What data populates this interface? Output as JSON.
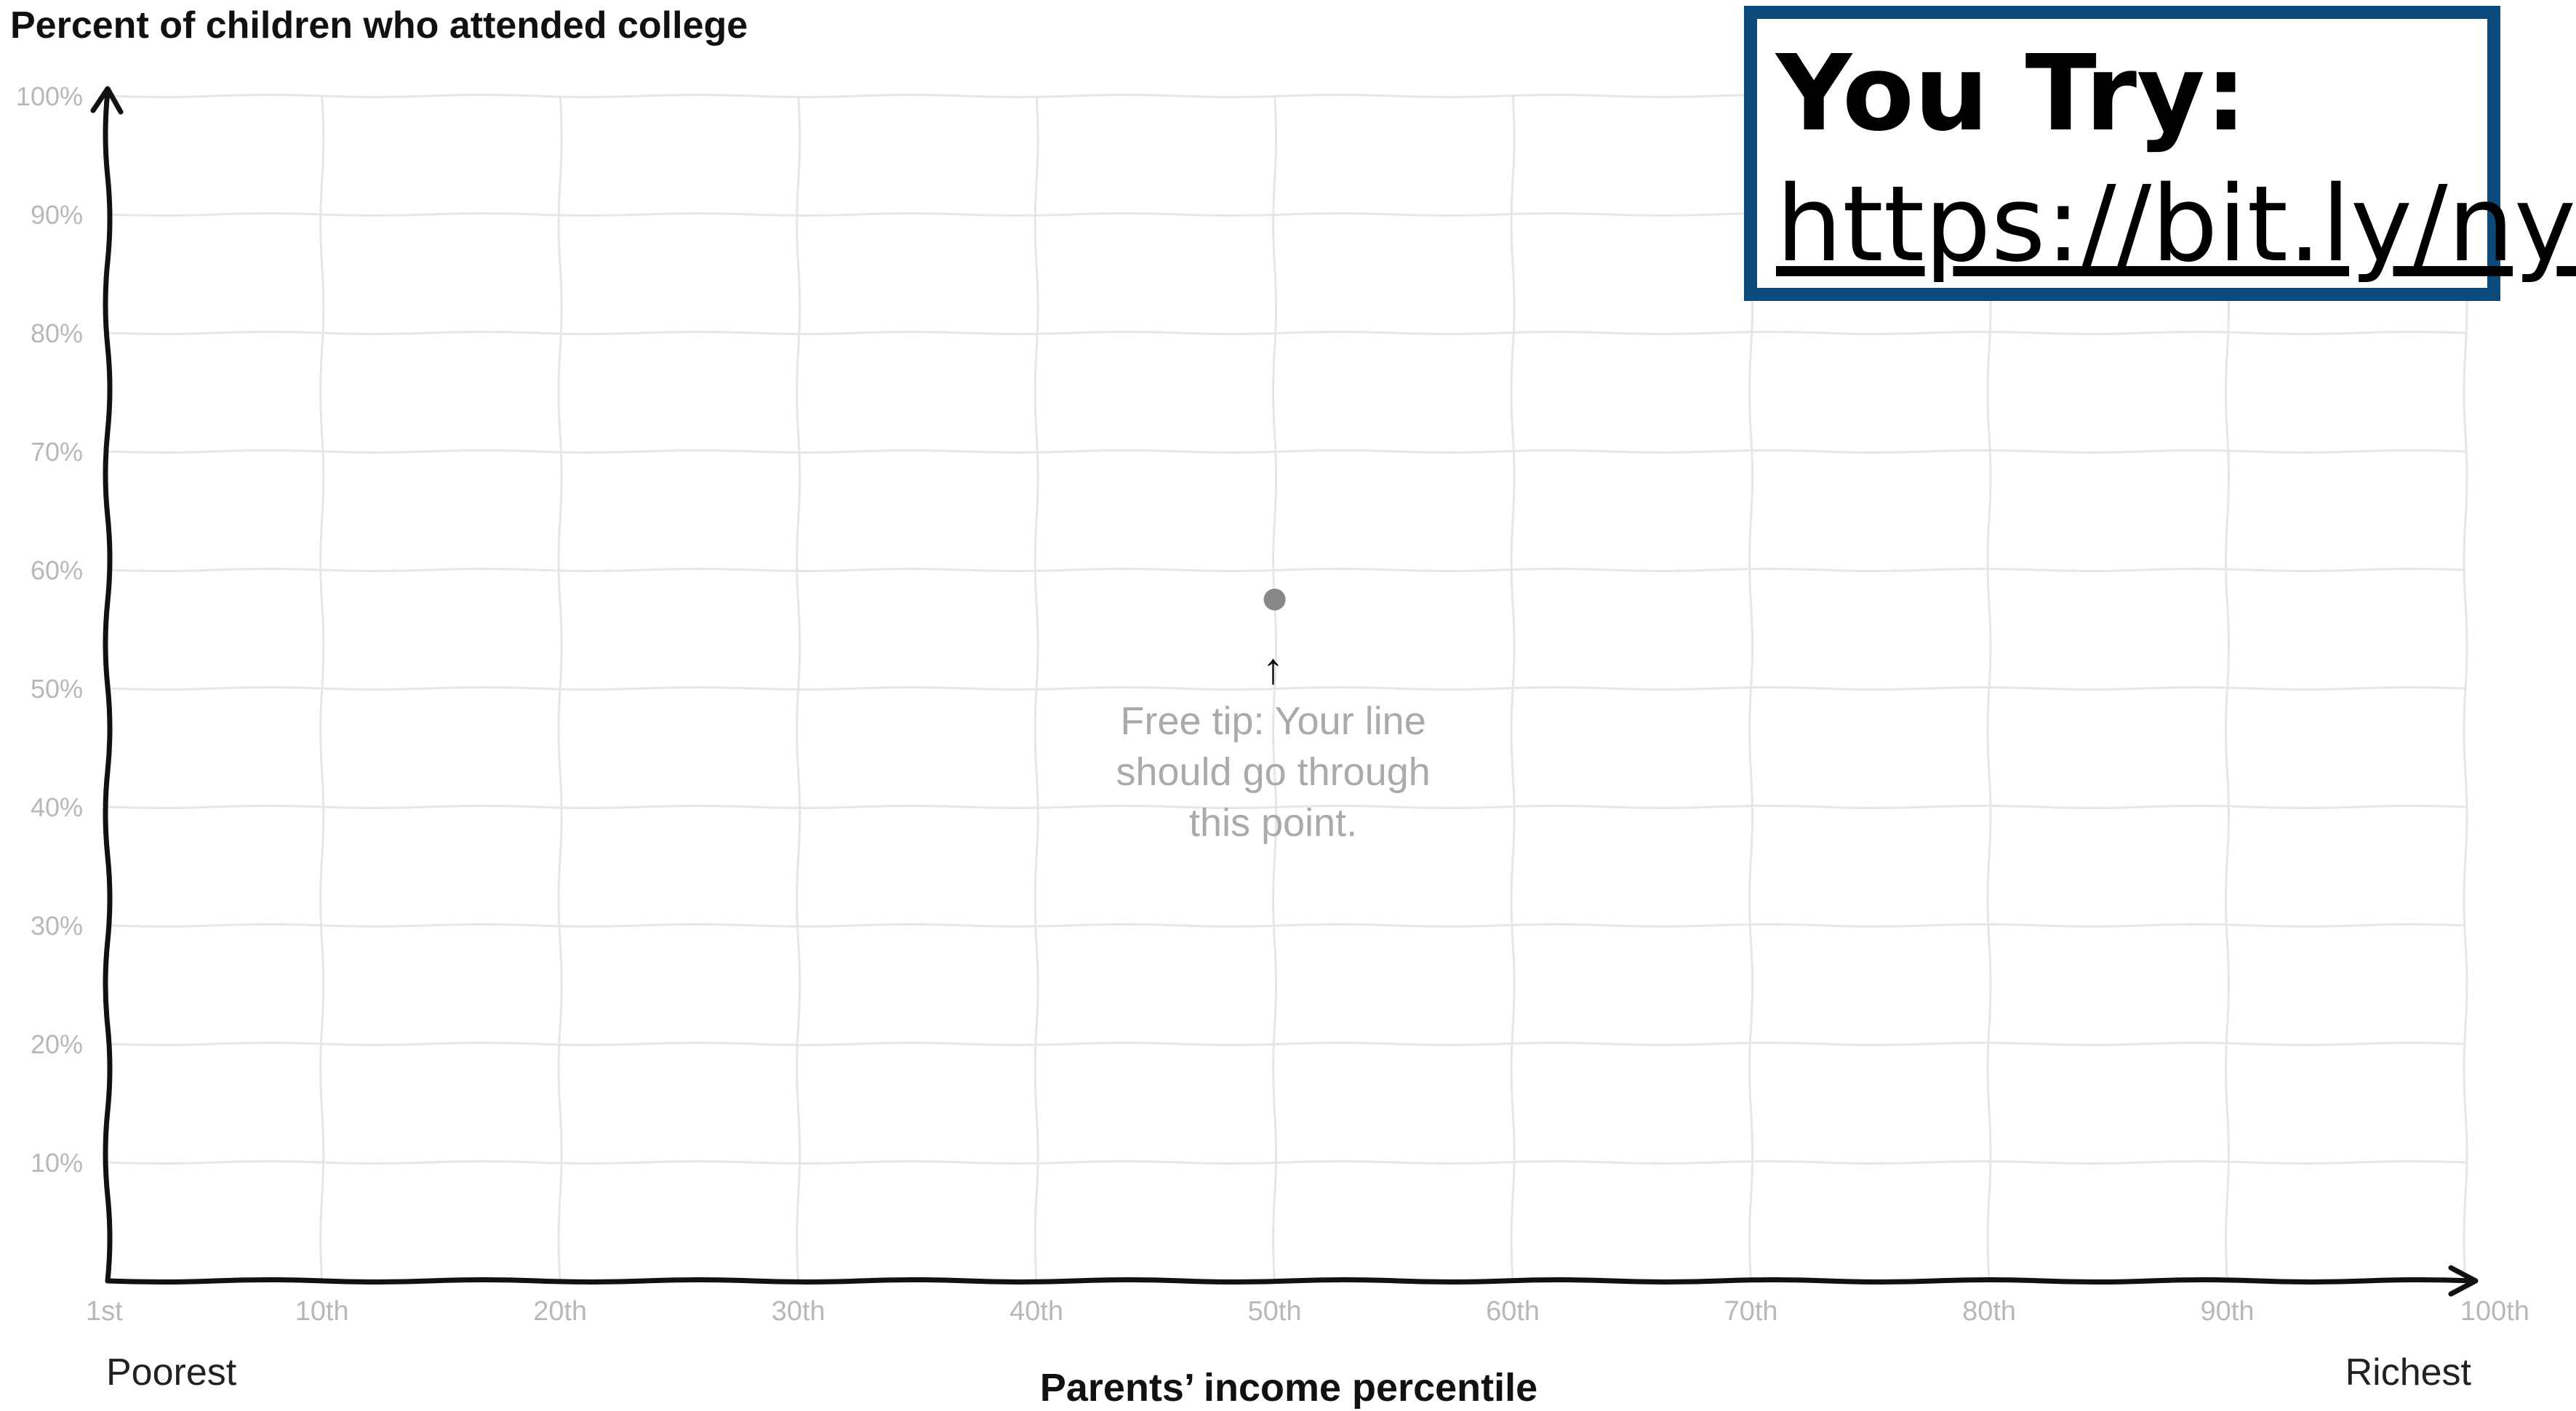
{
  "chart_data": {
    "type": "line",
    "title": "Percent of children who attended college",
    "xlabel": "Parents’ income percentile",
    "ylabel": "",
    "x_ticks": [
      "1st",
      "10th",
      "20th",
      "30th",
      "40th",
      "50th",
      "60th",
      "70th",
      "80th",
      "90th",
      "100th"
    ],
    "y_ticks": [
      "10%",
      "20%",
      "30%",
      "40%",
      "50%",
      "60%",
      "70%",
      "80%",
      "90%",
      "100%"
    ],
    "xlim": [
      1,
      100
    ],
    "ylim": [
      0,
      100
    ],
    "grid": true,
    "x_end_labels": {
      "left": "Poorest",
      "right": "Richest"
    },
    "series": [],
    "points": [
      {
        "x": 50,
        "y": 57.5
      }
    ],
    "annotation": {
      "arrow": "↑",
      "lines": [
        "Free tip: Your line",
        "should go through",
        "this point."
      ]
    },
    "colors": {
      "axis": "#111111",
      "grid": "#e6e6e6",
      "tick": "#b8b8b8",
      "point": "#888888",
      "tip": "#aaaaaa"
    }
  },
  "overlay": {
    "title": "You Try:",
    "link": "https://bit.ly/ny",
    "border_color": "#0b4a7a"
  }
}
